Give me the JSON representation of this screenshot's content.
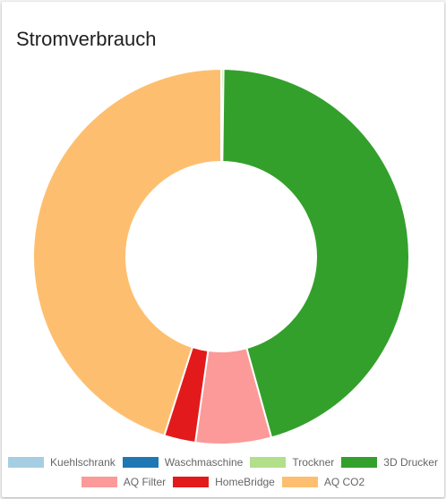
{
  "card": {
    "title": "Stromverbrauch"
  },
  "chart_data": {
    "type": "pie",
    "variant": "doughnut",
    "title": "Stromverbrauch",
    "legend_position": "bottom",
    "categories": [
      "Kuehlschrank",
      "Waschmaschine",
      "Trockner",
      "3D Drucker",
      "AQ Filter",
      "HomeBridge",
      "AQ CO2"
    ],
    "values": [
      0,
      0,
      0.2,
      45.5,
      6.5,
      2.7,
      45.1
    ],
    "colors": [
      "#a6cee3",
      "#1f78b4",
      "#b2df8a",
      "#33a02c",
      "#fb9a99",
      "#e31a1c",
      "#fdbf6f"
    ]
  }
}
